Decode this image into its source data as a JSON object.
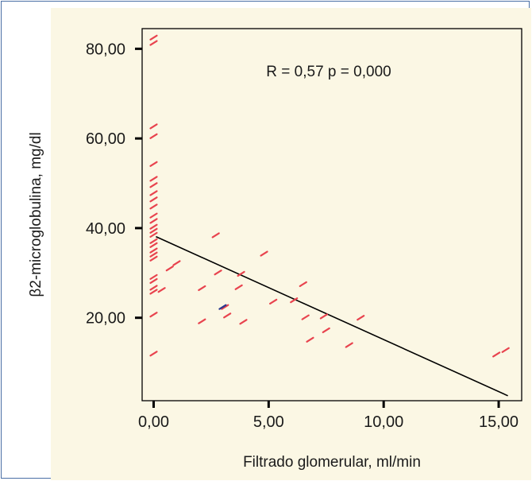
{
  "chart_data": {
    "type": "scatter",
    "annotation": "R = 0,57 p = 0,000",
    "xlabel": "Filtrado glomerular, ml/min",
    "ylabel": "β2-microglobulina, mg/dl",
    "xlim": [
      -0.5,
      16.0
    ],
    "ylim": [
      1.5,
      84.5
    ],
    "x_ticks": [
      {
        "value": 0,
        "label": "0,00"
      },
      {
        "value": 5,
        "label": "5,00"
      },
      {
        "value": 10,
        "label": "10,00"
      },
      {
        "value": 15,
        "label": "15,00"
      }
    ],
    "y_ticks": [
      {
        "value": 20,
        "label": "20,00"
      },
      {
        "value": 40,
        "label": "40,00"
      },
      {
        "value": 60,
        "label": "60,00"
      },
      {
        "value": 80,
        "label": "80,00"
      }
    ],
    "grid": false,
    "marker_color": "#e8434e",
    "highlight_color": "#2b3a8f",
    "line_color": "#000000",
    "regression_line": {
      "x": [
        0.1,
        15.4
      ],
      "y": [
        38.1,
        2.6
      ]
    },
    "points": [
      [
        0.0,
        82.5
      ],
      [
        0.0,
        81.3
      ],
      [
        0.0,
        62.7
      ],
      [
        0.0,
        60.5
      ],
      [
        0.0,
        54.3
      ],
      [
        0.0,
        51.0
      ],
      [
        0.0,
        49.6
      ],
      [
        0.0,
        47.8
      ],
      [
        0.0,
        46.4
      ],
      [
        0.0,
        44.8
      ],
      [
        0.0,
        42.8
      ],
      [
        0.0,
        41.6
      ],
      [
        0.0,
        40.3
      ],
      [
        0.0,
        39.4
      ],
      [
        0.0,
        38.5
      ],
      [
        0.0,
        37.1
      ],
      [
        0.0,
        36.2
      ],
      [
        0.0,
        35.0
      ],
      [
        0.0,
        34.1
      ],
      [
        0.0,
        33.2
      ],
      [
        0.0,
        29.1
      ],
      [
        0.0,
        28.2
      ],
      [
        0.0,
        26.7
      ],
      [
        0.0,
        25.8
      ],
      [
        0.0,
        20.7
      ],
      [
        0.0,
        12.0
      ],
      [
        0.35,
        26.2
      ],
      [
        0.7,
        31.0
      ],
      [
        1.0,
        32.2
      ],
      [
        2.1,
        26.6
      ],
      [
        2.1,
        19.2
      ],
      [
        2.7,
        38.4
      ],
      [
        2.8,
        30.1
      ],
      [
        3.1,
        22.4
      ],
      [
        3.2,
        20.5
      ],
      [
        3.7,
        26.8
      ],
      [
        3.8,
        29.8
      ],
      [
        3.9,
        19.1
      ],
      [
        4.8,
        34.3
      ],
      [
        5.2,
        23.6
      ],
      [
        6.1,
        23.9
      ],
      [
        6.5,
        27.5
      ],
      [
        6.6,
        20.1
      ],
      [
        6.8,
        15.1
      ],
      [
        7.4,
        20.3
      ],
      [
        7.5,
        17.2
      ],
      [
        8.5,
        13.9
      ],
      [
        9.0,
        20.0
      ],
      [
        14.9,
        11.8
      ],
      [
        15.3,
        12.8
      ]
    ],
    "highlighted_points": [
      [
        3.0,
        22.4
      ]
    ]
  }
}
